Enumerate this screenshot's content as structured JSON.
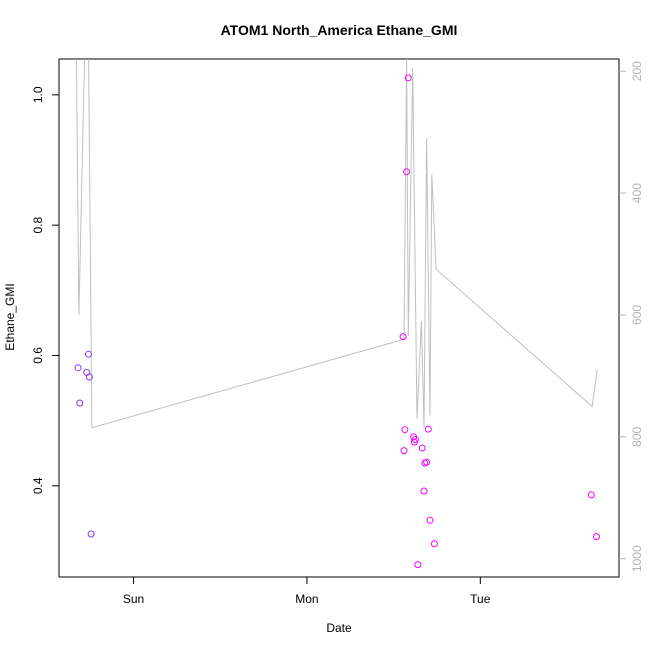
{
  "chart_data": {
    "type": "scatter",
    "title": "ATOM1 North_America Ethane_GMI",
    "xlabel": "Date",
    "ylabel": "Ethane_GMI",
    "x_axis": {
      "kind": "time",
      "range_days": [
        -0.43,
        2.8
      ],
      "ticks": [
        {
          "value": 0,
          "label": "Sun"
        },
        {
          "value": 1,
          "label": "Mon"
        },
        {
          "value": 2,
          "label": "Tue"
        }
      ]
    },
    "y_axis": {
      "range": [
        0.26,
        1.055
      ],
      "ticks": [
        0.4,
        0.6,
        0.8,
        1.0
      ],
      "tick_labels": [
        "0.4",
        "0.6",
        "0.8",
        "1.0"
      ]
    },
    "y2_axis": {
      "range": [
        1030,
        180
      ],
      "reversed": true,
      "ticks": [
        200,
        400,
        600,
        800,
        1000
      ],
      "tick_labels": [
        "200",
        "400",
        "600",
        "800",
        "1000"
      ],
      "color": "#b3b3b3"
    },
    "grid": false,
    "colors": {
      "points_early": "#7f3fff",
      "points_late": "#ff00ff",
      "pressure_line": "#bfbfbf",
      "axis": "#000000"
    },
    "points": [
      {
        "t": -0.32,
        "y": 0.581
      },
      {
        "t": -0.31,
        "y": 0.527
      },
      {
        "t": -0.27,
        "y": 0.574
      },
      {
        "t": -0.26,
        "y": 0.602
      },
      {
        "t": -0.255,
        "y": 0.567
      },
      {
        "t": -0.245,
        "y": 0.326
      },
      {
        "t": 1.555,
        "y": 0.629
      },
      {
        "t": 1.56,
        "y": 0.454
      },
      {
        "t": 1.565,
        "y": 0.486
      },
      {
        "t": 1.575,
        "y": 0.882
      },
      {
        "t": 1.585,
        "y": 1.026
      },
      {
        "t": 1.615,
        "y": 0.475
      },
      {
        "t": 1.62,
        "y": 0.467
      },
      {
        "t": 1.625,
        "y": 0.471
      },
      {
        "t": 1.64,
        "y": 0.279
      },
      {
        "t": 1.665,
        "y": 0.458
      },
      {
        "t": 1.675,
        "y": 0.392
      },
      {
        "t": 1.68,
        "y": 0.435
      },
      {
        "t": 1.69,
        "y": 0.436
      },
      {
        "t": 1.7,
        "y": 0.487
      },
      {
        "t": 1.71,
        "y": 0.347
      },
      {
        "t": 1.735,
        "y": 0.311
      },
      {
        "t": 2.64,
        "y": 0.386
      },
      {
        "t": 2.67,
        "y": 0.322
      }
    ],
    "pressure_line": [
      {
        "t": -0.33,
        "p": 160
      },
      {
        "t": -0.315,
        "p": 600
      },
      {
        "t": -0.29,
        "p": 270
      },
      {
        "t": -0.28,
        "p": 160
      },
      {
        "t": -0.26,
        "p": 160
      },
      {
        "t": -0.24,
        "p": 785
      },
      {
        "t": 1.56,
        "p": 640
      },
      {
        "t": 1.575,
        "p": 180
      },
      {
        "t": 1.585,
        "p": 635
      },
      {
        "t": 1.61,
        "p": 195
      },
      {
        "t": 1.635,
        "p": 770
      },
      {
        "t": 1.66,
        "p": 610
      },
      {
        "t": 1.675,
        "p": 785
      },
      {
        "t": 1.69,
        "p": 310
      },
      {
        "t": 1.71,
        "p": 765
      },
      {
        "t": 1.72,
        "p": 370
      },
      {
        "t": 1.745,
        "p": 525
      },
      {
        "t": 2.645,
        "p": 750
      },
      {
        "t": 2.675,
        "p": 690
      }
    ]
  }
}
